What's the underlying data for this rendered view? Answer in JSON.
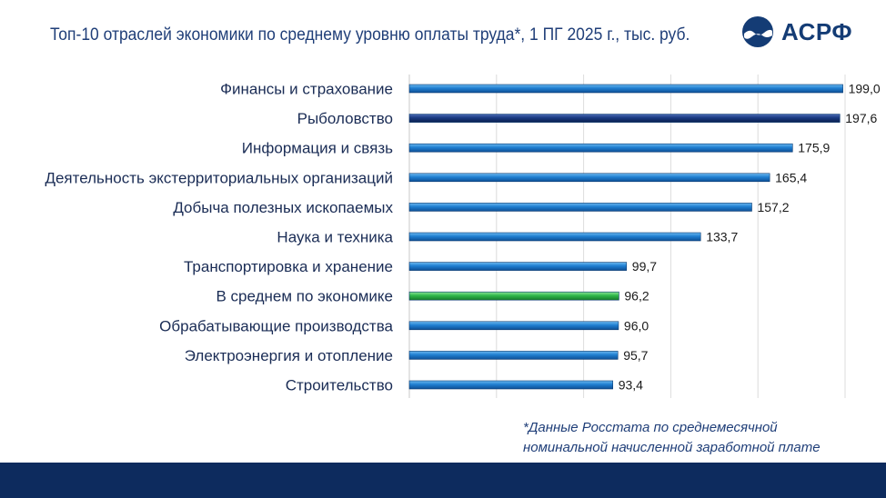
{
  "header": {
    "title": "Топ-10 отраслей экономики по среднему уровню оплаты труда*, 1 ПГ 2025 г., тыс. руб.",
    "logo_text": "АСРФ",
    "logo_icon": "wave-circle-icon"
  },
  "colors": {
    "default_bar": "#1f7fd1",
    "highlight_bar": "#1a3a82",
    "average_bar": "#2fb84a",
    "footer": "#0d2b5e"
  },
  "chart_data": {
    "type": "bar",
    "orientation": "horizontal",
    "title": "Топ-10 отраслей экономики по среднему уровню оплаты труда*, 1 ПГ 2025 г., тыс. руб.",
    "xlabel": "",
    "ylabel": "",
    "xlim": [
      0,
      200
    ],
    "grid": true,
    "categories": [
      "Финансы и страхование",
      "Рыболовство",
      "Информация и связь",
      "Деятельность экстерриториальных организаций",
      "Добыча полезных ископаемых",
      "Наука и техника",
      "Транспортировка и хранение",
      "В среднем по экономике",
      "Обрабатывающие производства",
      "Электроэнергия и отопление",
      "Строительство"
    ],
    "values": [
      199.0,
      197.6,
      175.9,
      165.4,
      157.2,
      133.7,
      99.7,
      96.2,
      96.0,
      95.7,
      93.4
    ],
    "value_labels": [
      "199,0",
      "197,6",
      "175,9",
      "165,4",
      "157,2",
      "133,7",
      "99,7",
      "96,2",
      "96,0",
      "95,7",
      "93,4"
    ],
    "bar_colors": [
      "default",
      "highlight",
      "default",
      "default",
      "default",
      "default",
      "default",
      "average",
      "default",
      "default",
      "default"
    ]
  },
  "note": {
    "line1": "*Данные Росстата по среднемесячной",
    "line2": "номинальной начисленной заработной плате"
  }
}
